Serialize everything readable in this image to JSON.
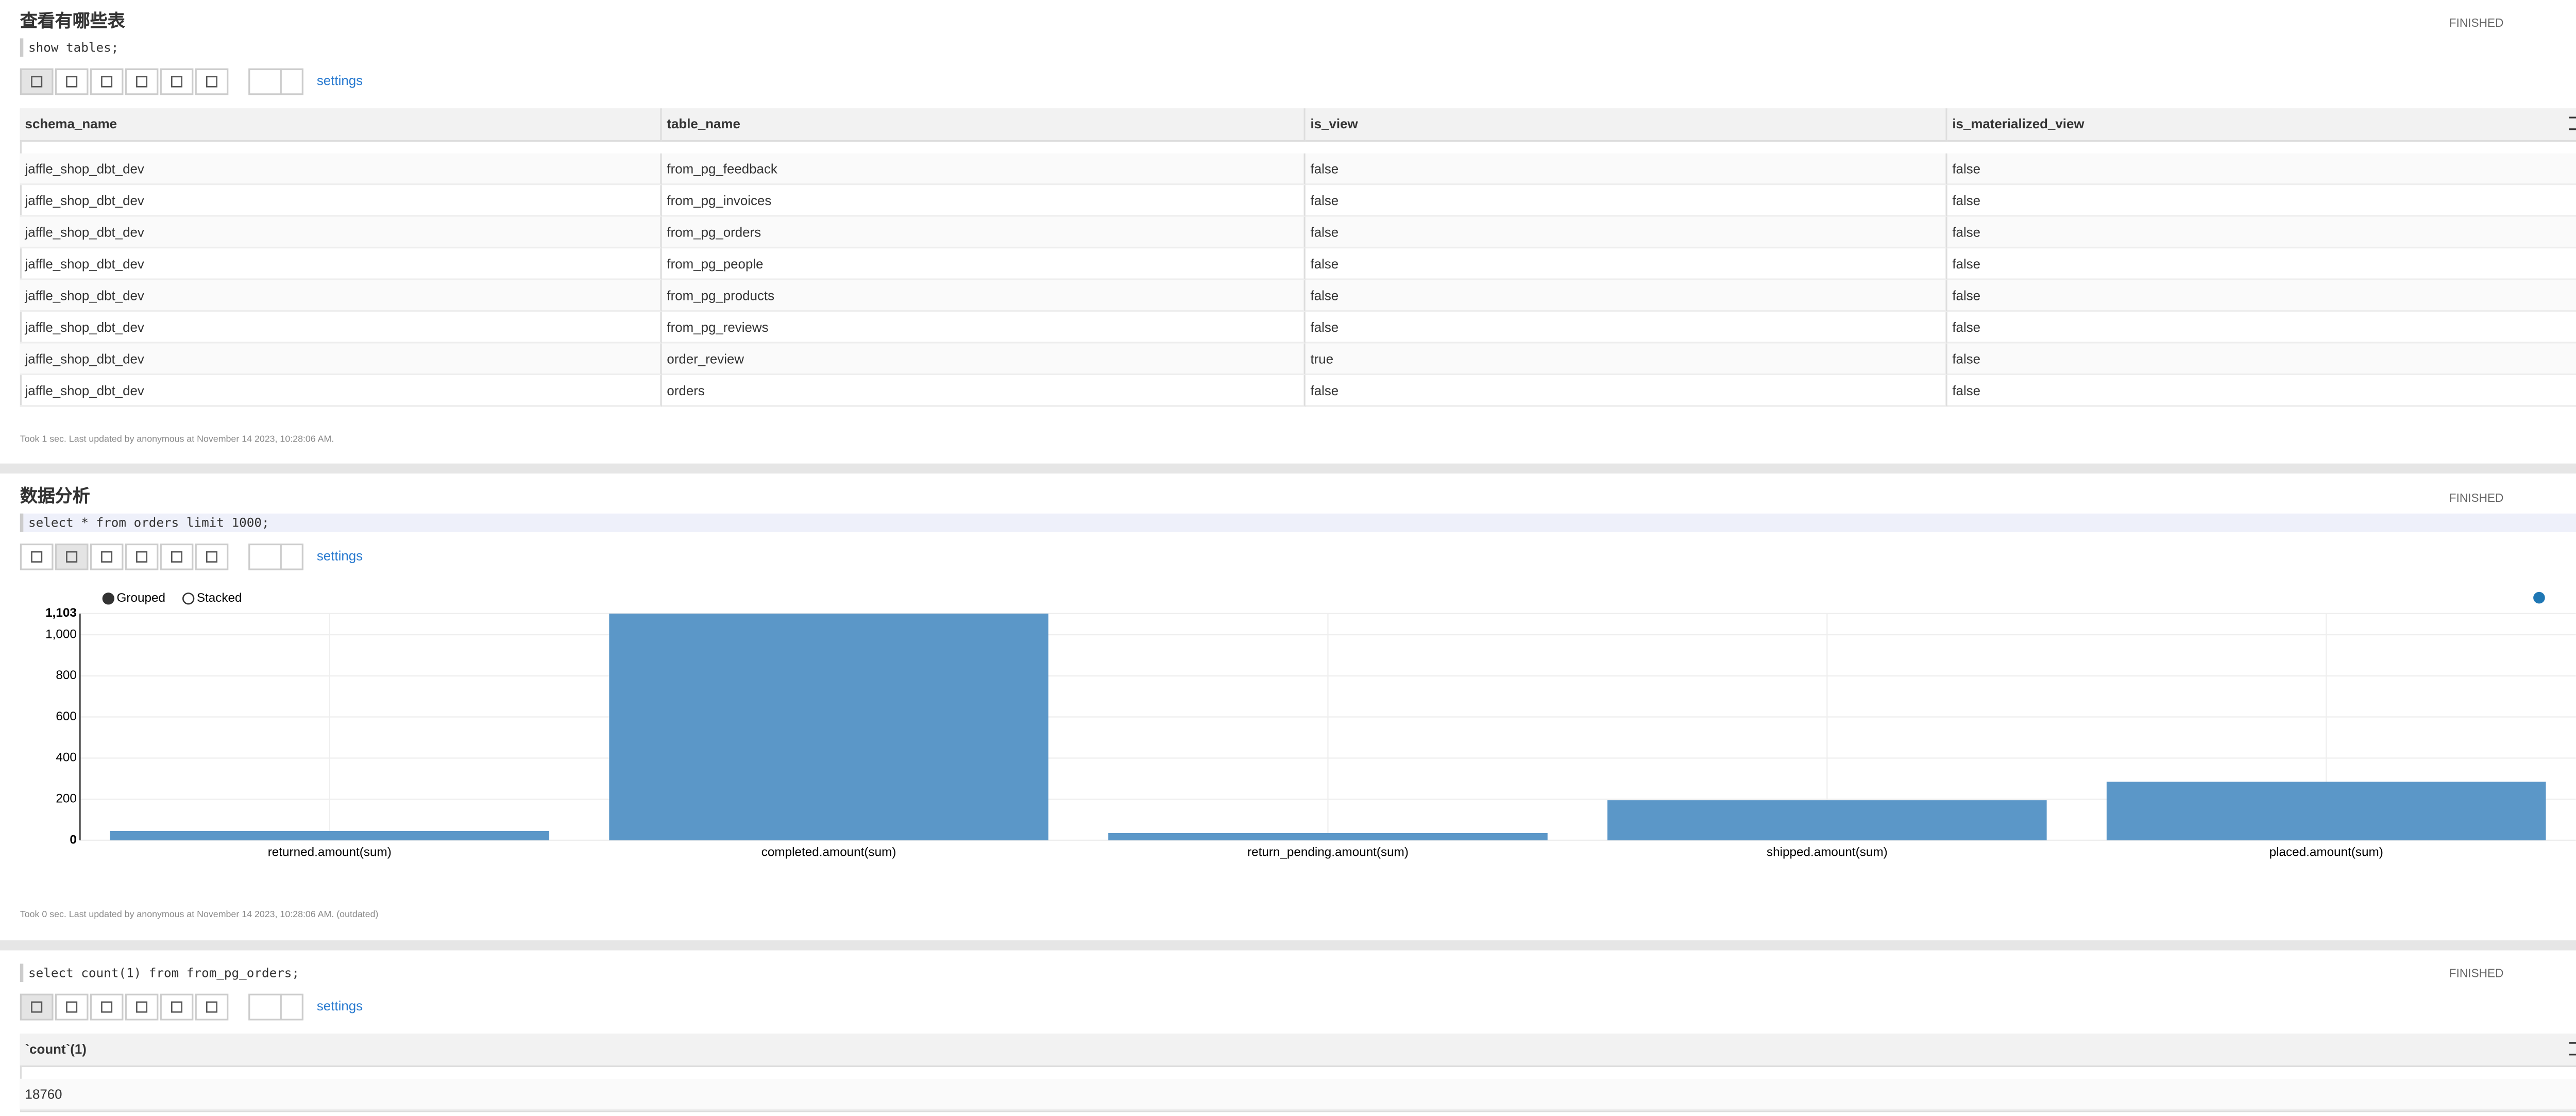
{
  "paragraphs": [
    {
      "title": "查看有哪些表",
      "code": "show tables;",
      "status": "FINISHED",
      "settings": "settings",
      "table": {
        "columns": [
          "schema_name",
          "table_name",
          "is_view",
          "is_materialized_view"
        ],
        "rows": [
          [
            "jaffle_shop_dbt_dev",
            "from_pg_feedback",
            "false",
            "false"
          ],
          [
            "jaffle_shop_dbt_dev",
            "from_pg_invoices",
            "false",
            "false"
          ],
          [
            "jaffle_shop_dbt_dev",
            "from_pg_orders",
            "false",
            "false"
          ],
          [
            "jaffle_shop_dbt_dev",
            "from_pg_people",
            "false",
            "false"
          ],
          [
            "jaffle_shop_dbt_dev",
            "from_pg_products",
            "false",
            "false"
          ],
          [
            "jaffle_shop_dbt_dev",
            "from_pg_reviews",
            "false",
            "false"
          ],
          [
            "jaffle_shop_dbt_dev",
            "order_review",
            "true",
            "false"
          ],
          [
            "jaffle_shop_dbt_dev",
            "orders",
            "false",
            "false"
          ]
        ]
      },
      "footer": "Took 1 sec. Last updated by anonymous at November 14 2023, 10:28:06 AM."
    },
    {
      "title": "数据分析",
      "code": "select * from orders limit 1000;",
      "status": "FINISHED",
      "settings": "settings",
      "chart_data": {
        "type": "bar",
        "modes": [
          "Grouped",
          "Stacked"
        ],
        "categories": [
          "returned.amount(sum)",
          "completed.amount(sum)",
          "return_pending.amount(sum)",
          "shipped.amount(sum)",
          "placed.amount(sum)"
        ],
        "values": [
          45,
          1103,
          35,
          195,
          285
        ],
        "color": "#5b97c8",
        "ylim": [
          0,
          1103
        ],
        "yticks": [
          0,
          200,
          400,
          600,
          800,
          {
            "value": 1000,
            "label": "1,000"
          },
          {
            "value": 1103,
            "label": "1,103"
          }
        ],
        "grid": true
      },
      "footer": "Took 0 sec. Last updated by anonymous at November 14 2023, 10:28:06 AM. (outdated)"
    },
    {
      "code": "select count(1) from from_pg_orders;",
      "status": "FINISHED",
      "settings": "settings",
      "table": {
        "columns": [
          "`count`(1)"
        ],
        "rows": [
          [
            "18760"
          ]
        ]
      }
    }
  ]
}
